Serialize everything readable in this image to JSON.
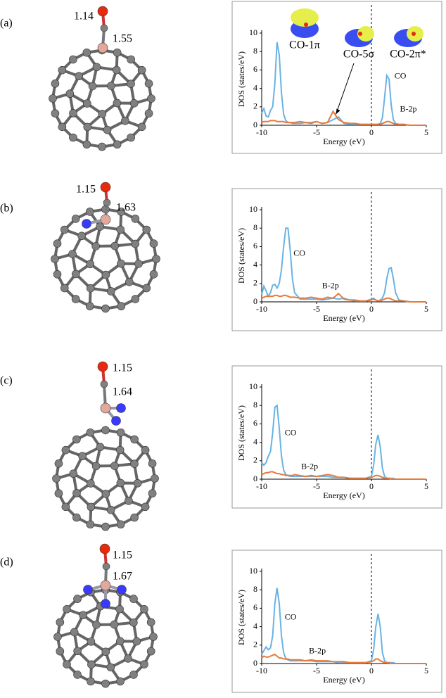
{
  "figure": {
    "panels": [
      {
        "label": "(a)",
        "co_bond": "1.14",
        "b_c_bond": "1.55"
      },
      {
        "label": "(b)",
        "co_bond": "1.15",
        "b_c_bond": "1.63"
      },
      {
        "label": "(c)",
        "co_bond": "1.15",
        "b_c_bond": "1.64"
      },
      {
        "label": "(d)",
        "co_bond": "1.15",
        "b_c_bond": "1.67"
      }
    ]
  },
  "chart_data": [
    {
      "type": "line",
      "xlabel": "Energy (eV)",
      "ylabel": "DOS (states/eV)",
      "annotations": [
        "CO-1π",
        "CO-5σ",
        "CO-2π*"
      ],
      "xlim": [
        -10,
        5
      ],
      "xticks": [
        -10,
        -5,
        0,
        5
      ],
      "ylim": [
        0,
        10
      ],
      "yticks": [
        0,
        2,
        4,
        6,
        8,
        10
      ],
      "fermi_level": 0,
      "x": [
        -10,
        -9.8,
        -9.6,
        -9.4,
        -9.2,
        -9,
        -8.8,
        -8.6,
        -8.4,
        -8.2,
        -8,
        -7.8,
        -7.6,
        -7.4,
        -7.2,
        -7,
        -6.5,
        -6,
        -5.5,
        -5,
        -4.5,
        -4,
        -3.5,
        -3,
        -2.5,
        -2,
        -1.5,
        -1,
        -0.5,
        0,
        0.2,
        0.4,
        0.6,
        0.8,
        1,
        1.2,
        1.4,
        1.6,
        1.8,
        2,
        2.2,
        2.5,
        3,
        3.5,
        4,
        4.5,
        5
      ],
      "series": [
        {
          "name": "CO",
          "color": "#69b3e3",
          "values": [
            1.3,
            1.8,
            1.0,
            0.9,
            1.6,
            2.0,
            4.5,
            9.0,
            7.6,
            3.5,
            1.2,
            0.5,
            0.3,
            0.3,
            0.2,
            0.2,
            0.2,
            0.3,
            0.3,
            0.4,
            0.2,
            0.3,
            0.6,
            0.9,
            0.2,
            0.1,
            0.1,
            0.1,
            0.1,
            0.1,
            0.1,
            0.1,
            0.1,
            0.2,
            0.8,
            3.0,
            5.4,
            5.0,
            2.2,
            0.6,
            0.2,
            0.1,
            0.1,
            0,
            0,
            0,
            0
          ]
        },
        {
          "name": "B-2p",
          "color": "#e8793a",
          "values": [
            0.3,
            0.4,
            0.4,
            0.4,
            0.5,
            0.5,
            0.5,
            0.4,
            0.4,
            0.4,
            0.4,
            0.3,
            0.3,
            0.3,
            0.3,
            0.3,
            0.4,
            0.3,
            0.2,
            0.4,
            0.2,
            0.3,
            1.5,
            0.6,
            0.3,
            0.2,
            0.2,
            0.1,
            0.1,
            0.1,
            0.1,
            0.1,
            0.1,
            0.1,
            0.2,
            0.3,
            0.4,
            0.4,
            0.3,
            0.2,
            0.1,
            0.1,
            0.1,
            0,
            0,
            0,
            0
          ]
        }
      ]
    },
    {
      "type": "line",
      "xlabel": "Energy (eV)",
      "ylabel": "DOS (states/eV)",
      "xlim": [
        -10,
        5
      ],
      "xticks": [
        -10,
        -5,
        0,
        5
      ],
      "ylim": [
        0,
        10
      ],
      "yticks": [
        0,
        2,
        4,
        6,
        8,
        10
      ],
      "fermi_level": 0,
      "x": [
        -10,
        -9.8,
        -9.6,
        -9.4,
        -9.2,
        -9,
        -8.8,
        -8.6,
        -8.4,
        -8.2,
        -8,
        -7.8,
        -7.6,
        -7.4,
        -7.2,
        -7,
        -6.5,
        -6,
        -5.5,
        -5,
        -4.5,
        -4,
        -3.5,
        -3,
        -2.5,
        -2,
        -1.5,
        -1,
        -0.5,
        0,
        0.2,
        0.4,
        0.6,
        0.8,
        1,
        1.2,
        1.4,
        1.6,
        1.8,
        2,
        2.2,
        2.5,
        3,
        3.5,
        4,
        4.5,
        5
      ],
      "series": [
        {
          "name": "CO",
          "color": "#69b3e3",
          "values": [
            0.8,
            1.7,
            1.2,
            0.6,
            1.0,
            1.8,
            1.9,
            1.5,
            2.0,
            3.5,
            6.0,
            8.0,
            8.0,
            5.5,
            2.5,
            1.0,
            0.3,
            0.3,
            0.3,
            0.3,
            0.2,
            0.3,
            0.4,
            0.3,
            0.4,
            0.2,
            0.1,
            0.1,
            0.1,
            0.3,
            0.4,
            0.2,
            0.1,
            0.2,
            0.4,
            1.0,
            2.5,
            3.6,
            3.7,
            2.5,
            1.0,
            0.2,
            0.1,
            0,
            0,
            0,
            0
          ]
        },
        {
          "name": "B-2p",
          "color": "#e8793a",
          "values": [
            0.4,
            0.5,
            0.6,
            0.6,
            0.6,
            0.6,
            0.7,
            0.7,
            0.6,
            0.6,
            0.7,
            0.7,
            0.6,
            0.5,
            0.5,
            0.5,
            0.4,
            0.4,
            0.5,
            0.4,
            0.3,
            0.5,
            0.4,
            0.9,
            0.3,
            0.2,
            0.2,
            0.1,
            0.1,
            0.2,
            0.3,
            0.2,
            0.1,
            0.1,
            0.2,
            0.3,
            0.4,
            0.4,
            0.3,
            0.2,
            0.1,
            0.1,
            0.1,
            0,
            0,
            0,
            0
          ]
        }
      ]
    },
    {
      "type": "line",
      "xlabel": "Energy (eV)",
      "ylabel": "DOS (states/eV)",
      "xlim": [
        -10,
        5
      ],
      "xticks": [
        -10,
        -5,
        0,
        5
      ],
      "ylim": [
        0,
        10
      ],
      "yticks": [
        0,
        2,
        4,
        6,
        8,
        10
      ],
      "fermi_level": 0,
      "x": [
        -10,
        -9.8,
        -9.6,
        -9.4,
        -9.2,
        -9,
        -8.8,
        -8.6,
        -8.4,
        -8.2,
        -8,
        -7.8,
        -7.6,
        -7.4,
        -7.2,
        -7,
        -6.5,
        -6,
        -5.5,
        -5,
        -4.5,
        -4,
        -3.5,
        -3,
        -2.5,
        -2,
        -1.5,
        -1,
        -0.5,
        0,
        0.2,
        0.4,
        0.6,
        0.8,
        1,
        1.2,
        1.4,
        1.6,
        1.8,
        2,
        2.2,
        2.5,
        3,
        3.5,
        4,
        4.5,
        5
      ],
      "series": [
        {
          "name": "CO",
          "color": "#69b3e3",
          "values": [
            1.8,
            1.5,
            1.8,
            2.5,
            3.0,
            5.0,
            7.8,
            8.0,
            5.5,
            2.5,
            1.0,
            0.5,
            0.4,
            0.3,
            0.3,
            0.3,
            0.3,
            0.3,
            0.3,
            0.3,
            0.3,
            0.3,
            0.2,
            0.2,
            0.2,
            0.1,
            0.1,
            0.1,
            0.1,
            0.3,
            1.5,
            3.8,
            4.8,
            3.5,
            1.2,
            0.3,
            0.1,
            0.1,
            0.1,
            0.1,
            0,
            0,
            0,
            0,
            0,
            0,
            0
          ]
        },
        {
          "name": "B-2p",
          "color": "#e8793a",
          "values": [
            0.5,
            0.6,
            0.7,
            0.7,
            0.8,
            0.8,
            0.7,
            0.6,
            0.6,
            0.5,
            0.5,
            0.4,
            0.4,
            0.4,
            0.4,
            0.5,
            0.4,
            0.3,
            0.4,
            0.3,
            0.4,
            0.5,
            0.4,
            0.2,
            0.2,
            0.1,
            0.1,
            0.1,
            0.1,
            0.2,
            0.3,
            0.4,
            0.4,
            0.3,
            0.2,
            0.1,
            0.1,
            0.1,
            0,
            0,
            0,
            0,
            0,
            0,
            0,
            0,
            0
          ]
        }
      ]
    },
    {
      "type": "line",
      "xlabel": "Energy (eV)",
      "ylabel": "DOS (states/eV)",
      "xlim": [
        -10,
        5
      ],
      "xticks": [
        -10,
        -5,
        0,
        5
      ],
      "ylim": [
        0,
        10
      ],
      "yticks": [
        0,
        2,
        4,
        6,
        8,
        10
      ],
      "fermi_level": 0,
      "x": [
        -10,
        -9.8,
        -9.6,
        -9.4,
        -9.2,
        -9,
        -8.8,
        -8.6,
        -8.4,
        -8.2,
        -8,
        -7.8,
        -7.6,
        -7.4,
        -7.2,
        -7,
        -6.5,
        -6,
        -5.5,
        -5,
        -4.5,
        -4,
        -3.5,
        -3,
        -2.5,
        -2,
        -1.5,
        -1,
        -0.5,
        0,
        0.2,
        0.4,
        0.6,
        0.8,
        1,
        1.2,
        1.4,
        1.6,
        1.8,
        2,
        2.2,
        2.5,
        3,
        3.5,
        4,
        4.5,
        5
      ],
      "series": [
        {
          "name": "CO",
          "color": "#69b3e3",
          "values": [
            1.0,
            1.4,
            1.8,
            1.5,
            1.7,
            3.0,
            6.5,
            8.2,
            6.5,
            3.0,
            1.2,
            0.5,
            0.4,
            0.3,
            0.3,
            0.3,
            0.3,
            0.3,
            0.3,
            0.2,
            0.2,
            0.2,
            0.2,
            0.1,
            0.1,
            0.1,
            0.1,
            0.1,
            0.1,
            0.3,
            1.5,
            4.0,
            5.4,
            4.0,
            1.2,
            0.3,
            0.1,
            0.1,
            0.1,
            0.1,
            0,
            0,
            0,
            0,
            0,
            0,
            0
          ]
        },
        {
          "name": "B-2p",
          "color": "#e8793a",
          "values": [
            0.6,
            0.8,
            0.7,
            0.7,
            0.8,
            0.9,
            1.0,
            0.8,
            0.6,
            0.6,
            0.5,
            0.5,
            0.5,
            0.4,
            0.4,
            0.4,
            0.4,
            0.3,
            0.4,
            0.3,
            0.3,
            0.3,
            0.2,
            0.2,
            0.2,
            0.1,
            0.1,
            0.1,
            0.1,
            0.2,
            0.3,
            0.5,
            0.5,
            0.3,
            0.2,
            0.1,
            0.1,
            0.1,
            0,
            0,
            0,
            0,
            0,
            0,
            0,
            0,
            0
          ]
        }
      ]
    }
  ]
}
